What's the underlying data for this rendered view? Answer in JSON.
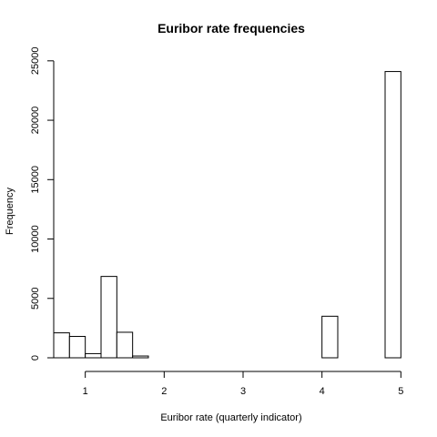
{
  "chart_data": {
    "type": "bar",
    "title": "Euribor rate frequencies",
    "xlabel": "Euribor rate (quarterly indicator)",
    "ylabel": "Frequency",
    "x_ticks": [
      1,
      2,
      3,
      4,
      5
    ],
    "y_ticks": [
      0,
      5000,
      10000,
      15000,
      20000,
      25000
    ],
    "xlim": [
      0.6,
      5.1
    ],
    "ylim": [
      0,
      25600
    ],
    "bins": [
      {
        "start": 0.6,
        "end": 0.8,
        "value": 2100
      },
      {
        "start": 0.8,
        "end": 1.0,
        "value": 1800
      },
      {
        "start": 1.0,
        "end": 1.2,
        "value": 350
      },
      {
        "start": 1.2,
        "end": 1.4,
        "value": 6850
      },
      {
        "start": 1.4,
        "end": 1.6,
        "value": 2150
      },
      {
        "start": 1.6,
        "end": 1.8,
        "value": 150
      },
      {
        "start": 1.8,
        "end": 2.0,
        "value": 0
      },
      {
        "start": 2.0,
        "end": 2.2,
        "value": 0
      },
      {
        "start": 2.2,
        "end": 2.4,
        "value": 0
      },
      {
        "start": 2.4,
        "end": 2.6,
        "value": 0
      },
      {
        "start": 2.6,
        "end": 2.8,
        "value": 0
      },
      {
        "start": 2.8,
        "end": 3.0,
        "value": 0
      },
      {
        "start": 3.0,
        "end": 3.2,
        "value": 0
      },
      {
        "start": 3.2,
        "end": 3.4,
        "value": 0
      },
      {
        "start": 3.4,
        "end": 3.6,
        "value": 0
      },
      {
        "start": 3.6,
        "end": 3.8,
        "value": 0
      },
      {
        "start": 3.8,
        "end": 4.0,
        "value": 0
      },
      {
        "start": 4.0,
        "end": 4.2,
        "value": 3500
      },
      {
        "start": 4.2,
        "end": 4.4,
        "value": 0
      },
      {
        "start": 4.4,
        "end": 4.6,
        "value": 0
      },
      {
        "start": 4.6,
        "end": 4.8,
        "value": 0
      },
      {
        "start": 4.8,
        "end": 5.0,
        "value": 24100
      }
    ],
    "grid": false,
    "legend": "none"
  }
}
